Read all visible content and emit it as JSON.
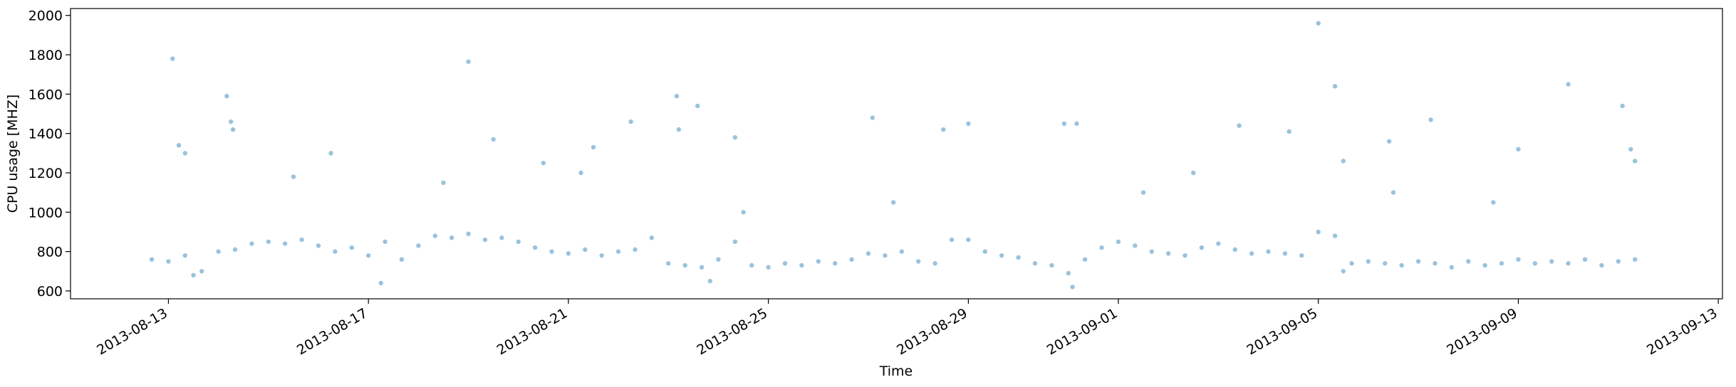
{
  "chart_data": {
    "type": "scatter",
    "xlabel": "Time",
    "ylabel": "CPU usage [MHZ]",
    "color": "#1f77b4",
    "xlim": [
      "2013-08-11T01:00",
      "2013-09-13T02:00"
    ],
    "xticks": [
      "2013-08-13",
      "2013-08-17",
      "2013-08-21",
      "2013-08-25",
      "2013-08-29",
      "2013-09-01",
      "2013-09-05",
      "2013-09-09",
      "2013-09-13"
    ],
    "ylim": [
      560,
      2035
    ],
    "yticks": [
      600,
      800,
      1000,
      1200,
      1400,
      1600,
      1800,
      2000
    ],
    "x": [
      "2013-08-12T16:00",
      "2013-08-13T00:00",
      "2013-08-13T08:00",
      "2013-08-13T16:00",
      "2013-08-14T00:00",
      "2013-08-14T08:00",
      "2013-08-14T16:00",
      "2013-08-15T00:00",
      "2013-08-15T08:00",
      "2013-08-15T16:00",
      "2013-08-16T00:00",
      "2013-08-16T08:00",
      "2013-08-16T16:00",
      "2013-08-17T00:00",
      "2013-08-17T08:00",
      "2013-08-17T16:00",
      "2013-08-18T00:00",
      "2013-08-18T08:00",
      "2013-08-18T16:00",
      "2013-08-19T00:00",
      "2013-08-19T08:00",
      "2013-08-19T16:00",
      "2013-08-20T00:00",
      "2013-08-20T08:00",
      "2013-08-20T16:00",
      "2013-08-21T00:00",
      "2013-08-21T08:00",
      "2013-08-21T16:00",
      "2013-08-22T00:00",
      "2013-08-22T08:00",
      "2013-08-22T16:00",
      "2013-08-23T00:00",
      "2013-08-23T08:00",
      "2013-08-23T16:00",
      "2013-08-24T00:00",
      "2013-08-24T08:00",
      "2013-08-24T16:00",
      "2013-08-25T00:00",
      "2013-08-25T08:00",
      "2013-08-25T16:00",
      "2013-08-26T00:00",
      "2013-08-26T08:00",
      "2013-08-26T16:00",
      "2013-08-27T00:00",
      "2013-08-27T08:00",
      "2013-08-27T16:00",
      "2013-08-28T00:00",
      "2013-08-28T08:00",
      "2013-08-28T16:00",
      "2013-08-29T00:00",
      "2013-08-29T08:00",
      "2013-08-29T16:00",
      "2013-08-30T00:00",
      "2013-08-30T08:00",
      "2013-08-30T16:00",
      "2013-08-31T00:00",
      "2013-08-31T08:00",
      "2013-08-31T16:00",
      "2013-09-01T00:00",
      "2013-09-01T08:00",
      "2013-09-01T16:00",
      "2013-09-02T00:00",
      "2013-09-02T08:00",
      "2013-09-02T16:00",
      "2013-09-03T00:00",
      "2013-09-03T08:00",
      "2013-09-03T16:00",
      "2013-09-04T00:00",
      "2013-09-04T08:00",
      "2013-09-04T16:00",
      "2013-09-05T00:00",
      "2013-09-05T08:00",
      "2013-09-05T16:00",
      "2013-09-06T00:00",
      "2013-09-06T08:00",
      "2013-09-06T16:00",
      "2013-09-07T00:00",
      "2013-09-07T08:00",
      "2013-09-07T16:00",
      "2013-09-08T00:00",
      "2013-09-08T08:00",
      "2013-09-08T16:00",
      "2013-09-09T00:00",
      "2013-09-09T08:00",
      "2013-09-09T16:00",
      "2013-09-10T00:00",
      "2013-09-10T08:00",
      "2013-09-10T16:00",
      "2013-09-11T00:00",
      "2013-09-11T08:00",
      "2013-08-13T02:00",
      "2013-08-13T05:00",
      "2013-08-13T08:00",
      "2013-08-14T04:00",
      "2013-08-14T06:00",
      "2013-08-14T07:00",
      "2013-08-19T00:00",
      "2013-08-19T12:00",
      "2013-08-16T06:00",
      "2013-08-21T12:00",
      "2013-08-22T06:00",
      "2013-08-23T04:00",
      "2013-08-23T05:00",
      "2013-08-23T14:00",
      "2013-08-24T08:00",
      "2013-08-27T02:00",
      "2013-08-28T12:00",
      "2013-08-29T00:00",
      "2013-08-30T22:00",
      "2013-08-31T04:00",
      "2013-09-03T10:00",
      "2013-09-04T10:00",
      "2013-09-05T00:00",
      "2013-09-05T08:00",
      "2013-09-05T12:00",
      "2013-09-06T10:00",
      "2013-09-07T06:00",
      "2013-09-10T00:00",
      "2013-09-11T02:00",
      "2013-09-11T06:00",
      "2013-09-09T00:00",
      "2013-09-11T08:00",
      "2013-08-13T12:00",
      "2013-08-17T06:00",
      "2013-08-23T20:00",
      "2013-08-31T02:00",
      "2013-09-05T12:00",
      "2013-08-24T12:00",
      "2013-08-27T12:00",
      "2013-09-01T12:00",
      "2013-09-02T12:00",
      "2013-09-06T12:00",
      "2013-09-08T12:00",
      "2013-08-18T12:00",
      "2013-08-20T12:00",
      "2013-08-15T12:00",
      "2013-08-21T06:00"
    ],
    "values": [
      760,
      750,
      780,
      700,
      800,
      810,
      840,
      850,
      840,
      860,
      830,
      800,
      820,
      780,
      850,
      760,
      830,
      880,
      870,
      890,
      860,
      870,
      850,
      820,
      800,
      790,
      810,
      780,
      800,
      810,
      870,
      740,
      730,
      720,
      760,
      850,
      730,
      720,
      740,
      730,
      750,
      740,
      760,
      790,
      780,
      800,
      750,
      740,
      860,
      860,
      800,
      780,
      770,
      740,
      730,
      690,
      760,
      820,
      850,
      830,
      800,
      790,
      780,
      820,
      840,
      810,
      790,
      800,
      790,
      780,
      900,
      880,
      740,
      750,
      740,
      730,
      750,
      740,
      720,
      750,
      730,
      740,
      760,
      740,
      750,
      740,
      760,
      730,
      750,
      760,
      1780,
      1340,
      1300,
      1590,
      1460,
      1420,
      1765,
      1370,
      1300,
      1330,
      1460,
      1590,
      1420,
      1540,
      1380,
      1480,
      1420,
      1450,
      1450,
      1450,
      1440,
      1410,
      1960,
      1640,
      1260,
      1360,
      1470,
      1650,
      1540,
      1320,
      1320,
      1260,
      680,
      640,
      650,
      620,
      700,
      1000,
      1050,
      1100,
      1200,
      1100,
      1050,
      1150,
      1250,
      1180,
      1200
    ]
  }
}
